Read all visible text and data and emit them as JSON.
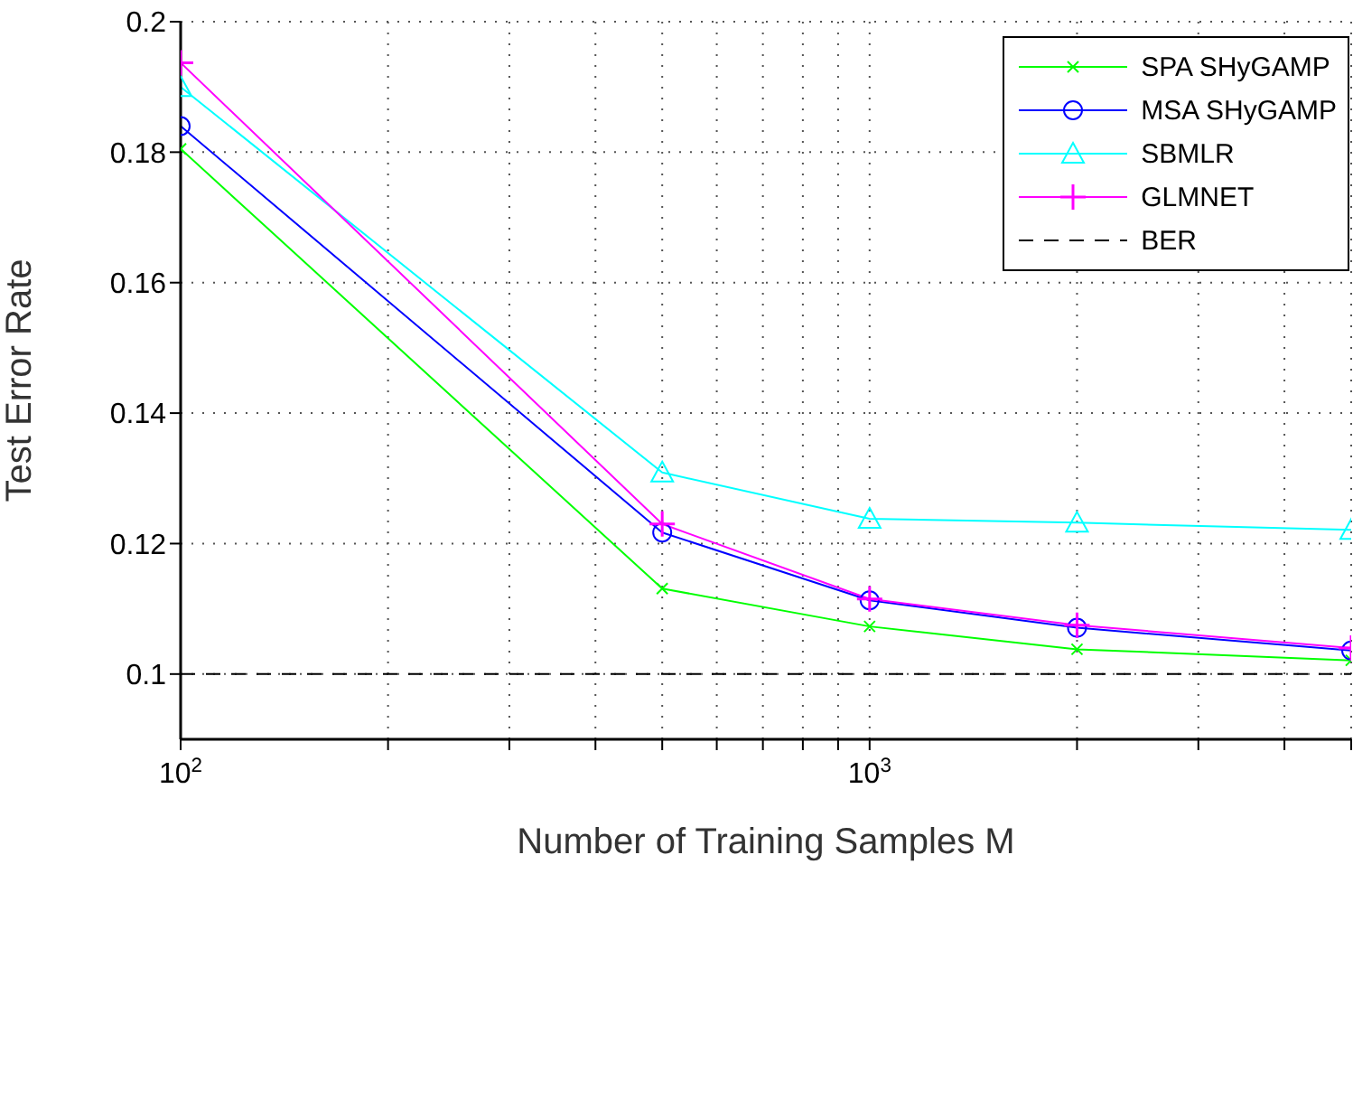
{
  "chart_data": {
    "type": "line",
    "xlabel": "Number of Training Samples M",
    "ylabel": "Test Error Rate",
    "x": [
      100,
      500,
      1000,
      2000,
      5000
    ],
    "series": [
      {
        "name": "SPA SHyGAMP",
        "color": "#00ff00",
        "marker": "x",
        "values": [
          0.1805,
          0.1131,
          0.1073,
          0.1038,
          0.1021
        ]
      },
      {
        "name": "MSA SHyGAMP",
        "color": "#0000ff",
        "marker": "circle",
        "values": [
          0.184,
          0.1217,
          0.1113,
          0.1071,
          0.1036
        ]
      },
      {
        "name": "SBMLR",
        "color": "#00ffff",
        "marker": "triangle",
        "values": [
          0.19,
          0.1309,
          0.1238,
          0.1232,
          0.1221
        ]
      },
      {
        "name": "GLMNET",
        "color": "#ff00ff",
        "marker": "cross",
        "values": [
          0.1937,
          0.123,
          0.1115,
          0.1075,
          0.104
        ]
      },
      {
        "name": "BER",
        "color": "#000000",
        "marker": "none",
        "line_style": "dashed",
        "values": [
          0.1,
          0.1,
          0.1,
          0.1,
          0.1
        ]
      }
    ],
    "log": "x",
    "xlim": [
      100,
      5000
    ],
    "xticks": [
      {
        "value": 100,
        "label": "10$^{2}$"
      },
      {
        "value": 200,
        "label": null
      },
      {
        "value": 300,
        "label": null
      },
      {
        "value": 400,
        "label": null
      },
      {
        "value": 500,
        "label": null
      },
      {
        "value": 600,
        "label": null
      },
      {
        "value": 700,
        "label": null
      },
      {
        "value": 800,
        "label": null
      },
      {
        "value": 900,
        "label": null
      },
      {
        "value": 1000,
        "label": "10$^{3}$"
      },
      {
        "value": 2000,
        "label": null
      },
      {
        "value": 3000,
        "label": null
      },
      {
        "value": 4000,
        "label": null
      },
      {
        "value": 5000,
        "label": null
      }
    ],
    "ylim": [
      0.09,
      0.2
    ],
    "yticks": [
      0.1,
      0.12,
      0.14,
      0.16,
      0.18,
      0.2
    ],
    "grid": true,
    "legend": "top right",
    "line_style": "solid"
  }
}
